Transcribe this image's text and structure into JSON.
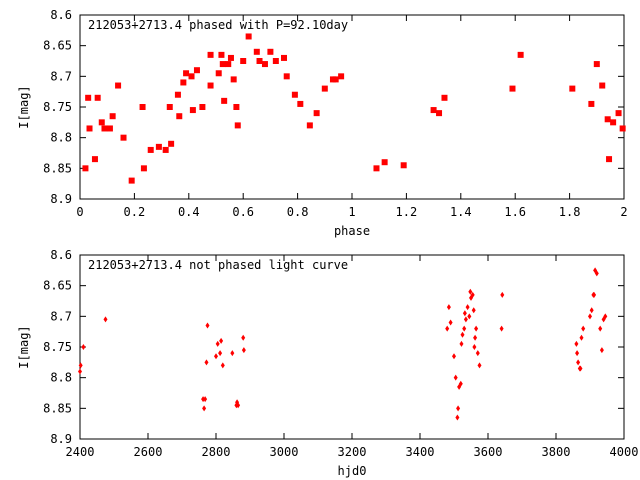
{
  "chart_data": [
    {
      "type": "scatter",
      "title": "212053+2713.4 phased with P=92.10day",
      "xlabel": "phase",
      "ylabel": "I[mag]",
      "xlim": [
        0,
        2
      ],
      "ylim": [
        8.9,
        8.6
      ],
      "y_inverted": true,
      "xticks": [
        "0",
        "0.2",
        "0.4",
        "0.6",
        "0.8",
        "1",
        "1.2",
        "1.4",
        "1.6",
        "1.8",
        "2"
      ],
      "yticks": [
        "8.6",
        "8.65",
        "8.7",
        "8.75",
        "8.8",
        "8.85",
        "8.9"
      ],
      "marker": "filled-square",
      "point_color": "#ff0000",
      "series": [
        {
          "x": [
            0.02,
            0.03,
            0.035,
            0.055,
            0.065,
            0.08,
            0.09,
            0.11,
            0.12,
            0.14,
            0.16,
            0.19,
            0.23,
            0.235,
            0.26,
            0.29,
            0.315,
            0.33,
            0.335,
            0.36,
            0.365,
            0.38,
            0.39,
            0.41,
            0.415,
            0.43,
            0.45,
            0.48,
            0.48,
            0.51,
            0.52,
            0.525,
            0.53,
            0.545,
            0.555,
            0.565,
            0.575,
            0.58,
            0.6,
            0.62,
            0.65,
            0.66,
            0.68,
            0.7,
            0.72,
            0.75,
            0.76,
            0.79,
            0.81,
            0.845,
            0.87,
            0.9,
            0.93,
            0.94,
            0.96,
            1.09,
            1.12,
            1.19,
            1.3,
            1.32,
            1.34,
            1.59,
            1.62,
            1.81,
            1.88,
            1.9,
            1.92,
            1.94,
            1.945,
            1.96,
            1.98,
            1.995
          ],
          "y": [
            8.85,
            8.735,
            8.785,
            8.835,
            8.735,
            8.775,
            8.785,
            8.785,
            8.765,
            8.715,
            8.8,
            8.87,
            8.75,
            8.85,
            8.82,
            8.815,
            8.82,
            8.75,
            8.81,
            8.73,
            8.765,
            8.71,
            8.695,
            8.7,
            8.755,
            8.69,
            8.75,
            8.665,
            8.715,
            8.695,
            8.665,
            8.68,
            8.74,
            8.68,
            8.67,
            8.705,
            8.75,
            8.78,
            8.675,
            8.635,
            8.66,
            8.675,
            8.68,
            8.66,
            8.675,
            8.67,
            8.7,
            8.73,
            8.745,
            8.78,
            8.76,
            8.72,
            8.705,
            8.705,
            8.7,
            8.85,
            8.84,
            8.845,
            8.755,
            8.76,
            8.735,
            8.72,
            8.665,
            8.72,
            8.745,
            8.68,
            8.715,
            8.77,
            8.835,
            8.775,
            8.76,
            8.785
          ]
        }
      ]
    },
    {
      "type": "scatter",
      "title": "212053+2713.4 not phased light curve",
      "xlabel": "hjd0",
      "ylabel": "I[mag]",
      "xlim": [
        2400,
        4000
      ],
      "ylim": [
        8.9,
        8.6
      ],
      "y_inverted": true,
      "xticks": [
        "2400",
        "2600",
        "2800",
        "3000",
        "3200",
        "3400",
        "3600",
        "3800",
        "4000"
      ],
      "yticks": [
        "8.6",
        "8.65",
        "8.7",
        "8.75",
        "8.8",
        "8.85",
        "8.9"
      ],
      "marker": "small-diamond",
      "point_color": "#ff0000",
      "series": [
        {
          "x": [
            2400,
            2402,
            2410,
            2475,
            2762,
            2765,
            2768,
            2772,
            2775,
            2800,
            2805,
            2812,
            2815,
            2820,
            2848,
            2860,
            2862,
            2865,
            2880,
            2882,
            3480,
            3485,
            3490,
            3500,
            3505,
            3510,
            3512,
            3515,
            3520,
            3522,
            3525,
            3530,
            3532,
            3535,
            3540,
            3545,
            3548,
            3550,
            3555,
            3558,
            3560,
            3562,
            3565,
            3570,
            3575,
            3640,
            3642,
            3860,
            3862,
            3865,
            3870,
            3872,
            3875,
            3880,
            3900,
            3905,
            3910,
            3912,
            3915,
            3920,
            3930,
            3935,
            3940,
            3945
          ],
          "y": [
            8.79,
            8.78,
            8.75,
            8.705,
            8.835,
            8.85,
            8.835,
            8.775,
            8.715,
            8.765,
            8.745,
            8.76,
            8.74,
            8.78,
            8.76,
            8.845,
            8.84,
            8.845,
            8.735,
            8.755,
            8.72,
            8.685,
            8.71,
            8.765,
            8.8,
            8.865,
            8.85,
            8.815,
            8.81,
            8.745,
            8.73,
            8.72,
            8.695,
            8.705,
            8.685,
            8.7,
            8.66,
            8.67,
            8.665,
            8.69,
            8.75,
            8.735,
            8.72,
            8.76,
            8.78,
            8.72,
            8.665,
            8.745,
            8.76,
            8.775,
            8.785,
            8.785,
            8.735,
            8.72,
            8.7,
            8.69,
            8.665,
            8.665,
            8.625,
            8.63,
            8.72,
            8.755,
            8.705,
            8.7
          ]
        }
      ]
    }
  ]
}
